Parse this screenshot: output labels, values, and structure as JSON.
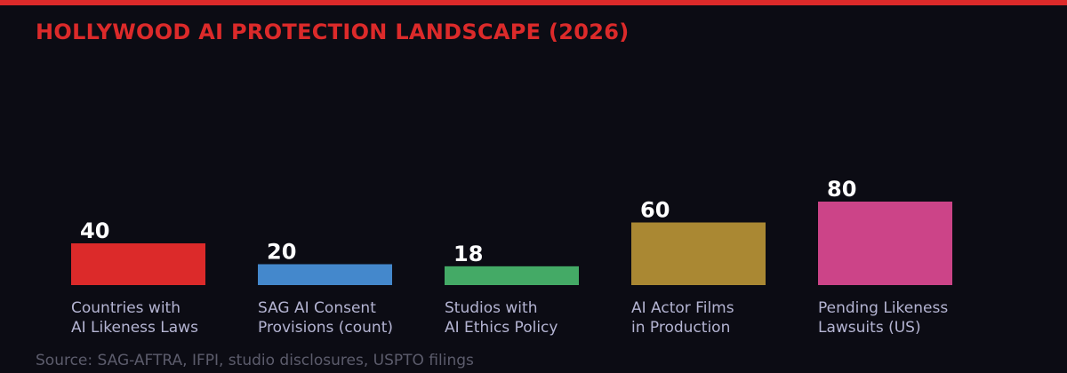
{
  "title": "HOLLYWOOD AI PROTECTION LANDSCAPE (2026)",
  "source": "Source: SAG-AFTRA, IFPI, studio disclosures, USPTO filings",
  "colors": {
    "accent": "#dc2a2a",
    "background": "#0c0c14",
    "label": "#b4b4d2",
    "value_label": "#ffffff",
    "source": "#5c5c6c"
  },
  "chart_data": {
    "type": "bar",
    "title": "HOLLYWOOD AI PROTECTION LANDSCAPE (2026)",
    "categories": [
      [
        "Countries with",
        "AI Likeness Laws"
      ],
      [
        "SAG AI Consent",
        "Provisions (count)"
      ],
      [
        "Studios with",
        "AI Ethics Policy"
      ],
      [
        "AI Actor Films",
        "in Production"
      ],
      [
        "Pending Likeness",
        "Lawsuits (US)"
      ]
    ],
    "values": [
      40,
      20,
      18,
      60,
      80
    ],
    "bar_colors": [
      "#dc2a2a",
      "#4488cc",
      "#44aa66",
      "#aa8833",
      "#cc4488"
    ],
    "data_labels": [
      "40",
      "20",
      "18",
      "60",
      "80"
    ],
    "grid": false,
    "axes_visible": false,
    "legend": "none"
  }
}
